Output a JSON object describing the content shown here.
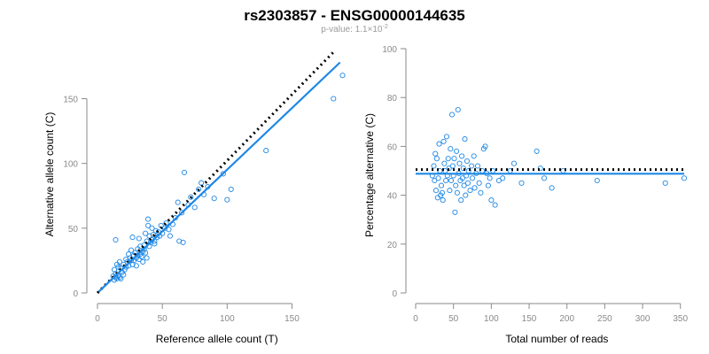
{
  "title": "rs2303857 - ENSG00000144635",
  "subtitle": {
    "prefix": "p-value: 1.1",
    "times": "×",
    "base": "10",
    "exponent": "-2"
  },
  "colors": {
    "points": "#1E88E5",
    "fit_line": "#1E88E5",
    "reference_line": "#000000",
    "axis": "#8a8a8a"
  },
  "chart_data": [
    {
      "type": "scatter",
      "xlabel": "Reference allele count (T)",
      "ylabel": "Alternative allele count (C)",
      "xlim": [
        0,
        190
      ],
      "ylim": [
        0,
        190
      ],
      "xticks": [
        0,
        50,
        100,
        150
      ],
      "yticks": [
        0,
        50,
        100,
        150
      ],
      "grid": false,
      "series": [
        {
          "points": [
            [
              12,
              13
            ],
            [
              13,
              10
            ],
            [
              14,
              12
            ],
            [
              15,
              11
            ],
            [
              14,
              15
            ],
            [
              16,
              13
            ],
            [
              17,
              12
            ],
            [
              18,
              11
            ],
            [
              13,
              18
            ],
            [
              15,
              22
            ],
            [
              16,
              20
            ],
            [
              14,
              41
            ],
            [
              17,
              24
            ],
            [
              18,
              19
            ],
            [
              19,
              16
            ],
            [
              20,
              14
            ],
            [
              20,
              22
            ],
            [
              21,
              18
            ],
            [
              22,
              20
            ],
            [
              22,
              26
            ],
            [
              23,
              24
            ],
            [
              24,
              21
            ],
            [
              24,
              30
            ],
            [
              25,
              27
            ],
            [
              26,
              25
            ],
            [
              26,
              33
            ],
            [
              27,
              22
            ],
            [
              27,
              43
            ],
            [
              28,
              29
            ],
            [
              28,
              25
            ],
            [
              29,
              31
            ],
            [
              30,
              27
            ],
            [
              30,
              21
            ],
            [
              31,
              34
            ],
            [
              31,
              29
            ],
            [
              32,
              26
            ],
            [
              32,
              42
            ],
            [
              33,
              30
            ],
            [
              33,
              36
            ],
            [
              34,
              28
            ],
            [
              35,
              32
            ],
            [
              35,
              24
            ],
            [
              36,
              34
            ],
            [
              36,
              37
            ],
            [
              37,
              31
            ],
            [
              37,
              46
            ],
            [
              38,
              40
            ],
            [
              38,
              27
            ],
            [
              39,
              52
            ],
            [
              39,
              57
            ],
            [
              40,
              36
            ],
            [
              40,
              44
            ],
            [
              41,
              39
            ],
            [
              42,
              41
            ],
            [
              42,
              50
            ],
            [
              43,
              45
            ],
            [
              44,
              38
            ],
            [
              44,
              40
            ],
            [
              45,
              48
            ],
            [
              46,
              43
            ],
            [
              47,
              47
            ],
            [
              48,
              44
            ],
            [
              49,
              52
            ],
            [
              50,
              46
            ],
            [
              52,
              50
            ],
            [
              53,
              54
            ],
            [
              55,
              49
            ],
            [
              56,
              44
            ],
            [
              58,
              53
            ],
            [
              60,
              58
            ],
            [
              62,
              70
            ],
            [
              63,
              40
            ],
            [
              65,
              62
            ],
            [
              66,
              39
            ],
            [
              67,
              93
            ],
            [
              70,
              68
            ],
            [
              72,
              74
            ],
            [
              75,
              66
            ],
            [
              78,
              80
            ],
            [
              80,
              85
            ],
            [
              82,
              76
            ],
            [
              85,
              82
            ],
            [
              90,
              73
            ],
            [
              97,
              92
            ],
            [
              100,
              72
            ],
            [
              103,
              80
            ],
            [
              130,
              110
            ],
            [
              182,
              150
            ],
            [
              189,
              168
            ]
          ]
        }
      ],
      "reference_line": {
        "style": "dotted",
        "from": [
          0,
          0
        ],
        "to": [
          183,
          187
        ]
      },
      "fit_line": {
        "from": [
          1,
          1
        ],
        "to": [
          187,
          178
        ]
      }
    },
    {
      "type": "scatter",
      "xlabel": "Total number of reads",
      "ylabel": "Percentage alternative (C)",
      "xlim": [
        0,
        355
      ],
      "ylim": [
        0,
        100
      ],
      "xticks": [
        0,
        50,
        100,
        150,
        200,
        250,
        300,
        350
      ],
      "yticks": [
        0,
        20,
        40,
        60,
        80,
        100
      ],
      "grid": false,
      "series": [
        {
          "points": [
            [
              22,
              48
            ],
            [
              24,
              52
            ],
            [
              25,
              46
            ],
            [
              26,
              57
            ],
            [
              27,
              42
            ],
            [
              28,
              55
            ],
            [
              29,
              39
            ],
            [
              30,
              47
            ],
            [
              31,
              61
            ],
            [
              32,
              50
            ],
            [
              33,
              40
            ],
            [
              34,
              44
            ],
            [
              35,
              41
            ],
            [
              36,
              38
            ],
            [
              37,
              62
            ],
            [
              38,
              53
            ],
            [
              39,
              50
            ],
            [
              40,
              46
            ],
            [
              41,
              64
            ],
            [
              42,
              48
            ],
            [
              43,
              55
            ],
            [
              44,
              51
            ],
            [
              45,
              42
            ],
            [
              46,
              59
            ],
            [
              47,
              46
            ],
            [
              48,
              73
            ],
            [
              49,
              52
            ],
            [
              50,
              48
            ],
            [
              51,
              55
            ],
            [
              52,
              33
            ],
            [
              53,
              44
            ],
            [
              54,
              58
            ],
            [
              55,
              41
            ],
            [
              56,
              75
            ],
            [
              57,
              49
            ],
            [
              58,
              53
            ],
            [
              59,
              46
            ],
            [
              60,
              38
            ],
            [
              61,
              56
            ],
            [
              62,
              47
            ],
            [
              63,
              51
            ],
            [
              64,
              44
            ],
            [
              65,
              63
            ],
            [
              66,
              40
            ],
            [
              67,
              48
            ],
            [
              68,
              54
            ],
            [
              69,
              45
            ],
            [
              70,
              50
            ],
            [
              72,
              42
            ],
            [
              74,
              52
            ],
            [
              75,
              47
            ],
            [
              77,
              56
            ],
            [
              78,
              43
            ],
            [
              80,
              49
            ],
            [
              82,
              52
            ],
            [
              84,
              45
            ],
            [
              86,
              41
            ],
            [
              88,
              50
            ],
            [
              90,
              59
            ],
            [
              92,
              60
            ],
            [
              94,
              49
            ],
            [
              96,
              44
            ],
            [
              98,
              47
            ],
            [
              100,
              38
            ],
            [
              102,
              50
            ],
            [
              105,
              36
            ],
            [
              110,
              46
            ],
            [
              115,
              47
            ],
            [
              125,
              50
            ],
            [
              130,
              53
            ],
            [
              140,
              45
            ],
            [
              160,
              58
            ],
            [
              165,
              51
            ],
            [
              170,
              47
            ],
            [
              180,
              43
            ],
            [
              195,
              50
            ],
            [
              240,
              46
            ],
            [
              330,
              45
            ],
            [
              355,
              47
            ]
          ]
        }
      ],
      "reference_line": {
        "style": "dotted",
        "from": [
          0,
          50.5
        ],
        "to": [
          355,
          50.5
        ]
      },
      "fit_line": {
        "from": [
          0,
          48.8
        ],
        "to": [
          355,
          48.8
        ]
      }
    }
  ]
}
